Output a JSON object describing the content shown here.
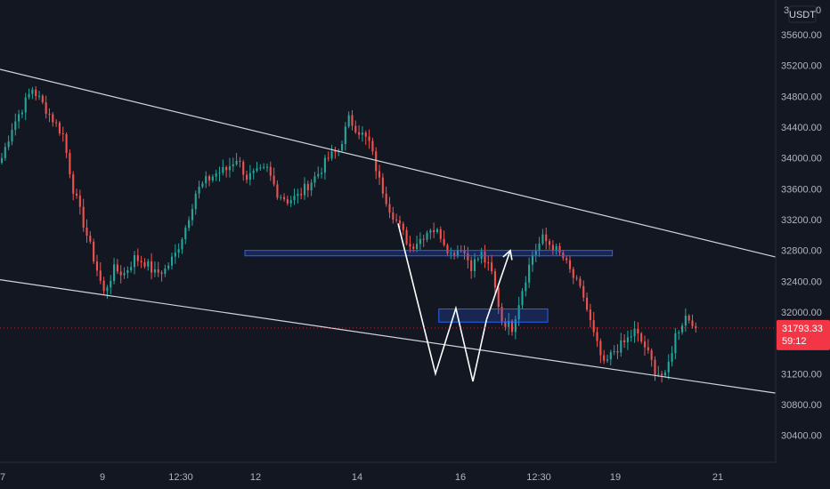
{
  "chart_data": {
    "type": "candlestick",
    "currency_label": "USDT",
    "top_tick_partial": "3",
    "top_tick_partial_tail": "0",
    "y_ticks": [
      35600,
      35200,
      34800,
      34400,
      34000,
      33600,
      33200,
      32800,
      32400,
      32000,
      31600,
      31200,
      30800,
      30400
    ],
    "y_tick_labels": [
      "35600.00",
      "35200.00",
      "34800.00",
      "34400.00",
      "34000.00",
      "33600.00",
      "33200.00",
      "32800.00",
      "32400.00",
      "32000.00",
      "31600.00",
      "31200.00",
      "30800.00",
      "30400.00"
    ],
    "ylim": [
      30050,
      36050
    ],
    "x_tick_labels": [
      "9",
      "12:30",
      "12",
      "14",
      "16",
      "12:30",
      "19",
      "21"
    ],
    "x_first_partial_label": "7",
    "last_price": {
      "value_text": "31793.33",
      "countdown": "59:12",
      "value": 31793.33
    },
    "close_path": [
      [
        0,
        34000
      ],
      [
        3,
        34400
      ],
      [
        6,
        34650
      ],
      [
        9,
        34900
      ],
      [
        12,
        34700
      ],
      [
        15,
        34500
      ],
      [
        18,
        34300
      ],
      [
        21,
        33600
      ],
      [
        24,
        33150
      ],
      [
        27,
        32700
      ],
      [
        30,
        32250
      ],
      [
        33,
        32550
      ],
      [
        36,
        32500
      ],
      [
        39,
        32700
      ],
      [
        42,
        32650
      ],
      [
        45,
        32500
      ],
      [
        48,
        32550
      ],
      [
        51,
        32750
      ],
      [
        54,
        33100
      ],
      [
        57,
        33550
      ],
      [
        60,
        33700
      ],
      [
        63,
        33800
      ],
      [
        66,
        33850
      ],
      [
        69,
        34000
      ],
      [
        72,
        33750
      ],
      [
        75,
        33800
      ],
      [
        78,
        33850
      ],
      [
        81,
        33550
      ],
      [
        84,
        33450
      ],
      [
        87,
        33500
      ],
      [
        90,
        33650
      ],
      [
        93,
        33800
      ],
      [
        96,
        34000
      ],
      [
        99,
        34100
      ],
      [
        102,
        34500
      ],
      [
        105,
        34350
      ],
      [
        108,
        34200
      ],
      [
        111,
        33700
      ],
      [
        114,
        33350
      ],
      [
        117,
        33100
      ],
      [
        120,
        32850
      ],
      [
        123,
        32950
      ],
      [
        126,
        33100
      ],
      [
        129,
        33000
      ],
      [
        132,
        32750
      ],
      [
        135,
        32850
      ],
      [
        138,
        32600
      ],
      [
        141,
        32750
      ],
      [
        144,
        32500
      ],
      [
        147,
        31900
      ],
      [
        150,
        31800
      ],
      [
        153,
        32300
      ],
      [
        156,
        32750
      ],
      [
        159,
        32950
      ],
      [
        162,
        32850
      ],
      [
        165,
        32700
      ],
      [
        168,
        32450
      ],
      [
        171,
        32200
      ],
      [
        174,
        31700
      ],
      [
        177,
        31300
      ],
      [
        180,
        31500
      ],
      [
        183,
        31600
      ],
      [
        186,
        31750
      ],
      [
        189,
        31550
      ],
      [
        192,
        31250
      ],
      [
        195,
        31150
      ],
      [
        198,
        31700
      ],
      [
        201,
        31950
      ],
      [
        204,
        31850
      ]
    ],
    "trend_lines": [
      {
        "from": [
          0,
          35150
        ],
        "to": [
          220,
          32800
        ]
      },
      {
        "from": [
          0,
          32420
        ],
        "to": [
          220,
          31000
        ]
      }
    ],
    "zones": [
      {
        "x0": 72,
        "x1": 180,
        "y0": 32730,
        "y1": 32800
      },
      {
        "x0": 129,
        "x1": 161,
        "y0": 31870,
        "y1": 32040
      }
    ],
    "pattern_path": [
      [
        117,
        33150
      ],
      [
        128,
        31200
      ],
      [
        134,
        32050
      ],
      [
        139,
        31100
      ],
      [
        143,
        31900
      ]
    ],
    "projection": {
      "from": [
        143,
        31900
      ],
      "to": [
        150,
        32800
      ]
    }
  }
}
